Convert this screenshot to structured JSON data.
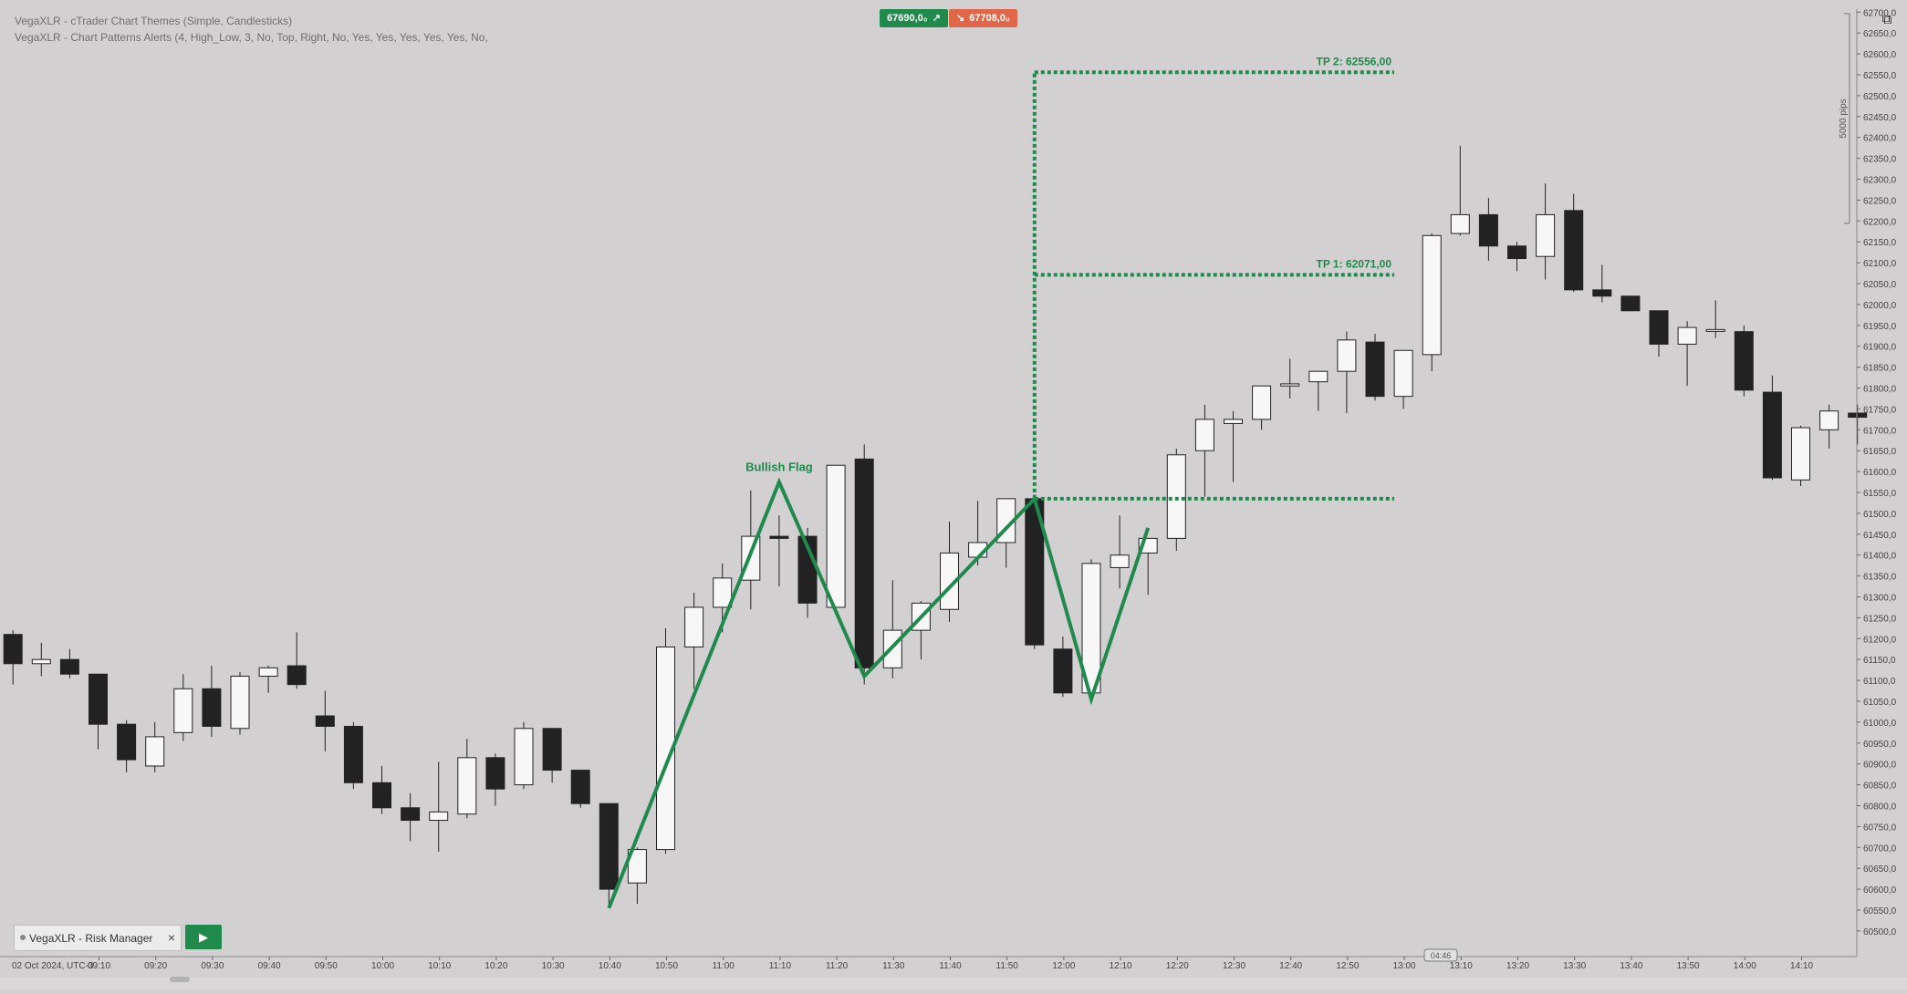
{
  "indicators": {
    "line1": "VegaXLR - cTrader Chart Themes (Simple, Candlesticks)",
    "line2": "VegaXLR - Chart Patterns Alerts (4, High_Low, 3, No, Top, Right, No, Yes, Yes, Yes, Yes, Yes, No,"
  },
  "quotes": {
    "buy_price": "67690,0₀",
    "sell_price": "67708,0₀",
    "buy_arrow": "↗",
    "sell_arrow": "↘"
  },
  "toolbar": {
    "popout_icon": "⧉"
  },
  "risk_manager": {
    "label": "VegaXLR - Risk Manager",
    "close": "×",
    "run": "▶"
  },
  "ruler_label": "5000 pips",
  "colors": {
    "background": "#d2d0d0",
    "bull": "#f7f7f7",
    "bear": "#222222",
    "pattern": "#1f8a4c",
    "buy": "#1f8a4c",
    "sell": "#e26748"
  },
  "chart_data": {
    "type": "candlestick",
    "date_label": "02 Oct 2024, UTC-3",
    "x_ticks": [
      "09:10",
      "09:20",
      "09:30",
      "09:40",
      "09:50",
      "10:00",
      "10:10",
      "10:20",
      "10:30",
      "10:40",
      "10:50",
      "11:00",
      "11:10",
      "11:20",
      "11:30",
      "11:40",
      "11:50",
      "12:00",
      "12:10",
      "12:20",
      "12:30",
      "12:40",
      "12:50",
      "13:00",
      "13:10",
      "13:20",
      "13:30",
      "13:40",
      "13:50",
      "14:00",
      "14:10"
    ],
    "y_ticks": [
      "62700,0",
      "62650,0",
      "62600,0",
      "62550,0",
      "62500,0",
      "62450,0",
      "62400,0",
      "62350,0",
      "62300,0",
      "62250,0",
      "62200,0",
      "62150,0",
      "62100,0",
      "62050,0",
      "62000,0",
      "61950,0",
      "61900,0",
      "61850,0",
      "61800,0",
      "61750,0",
      "61700,0",
      "61650,0",
      "61600,0",
      "61550,0",
      "61500,0",
      "61450,0",
      "61400,0",
      "61350,0",
      "61300,0",
      "61250,0",
      "61200,0",
      "61150,0",
      "61100,0",
      "61050,0",
      "61000,0",
      "60950,0",
      "60900,0",
      "60850,0",
      "60800,0",
      "60750,0",
      "60700,0",
      "60650,0",
      "60600,0",
      "60550,0",
      "60500,0"
    ],
    "ylim": [
      60480,
      62705
    ],
    "crosshair_time": "04:46",
    "candles": [
      {
        "o": 61210,
        "h": 61220,
        "l": 61090,
        "c": 61140
      },
      {
        "o": 61140,
        "h": 61190,
        "l": 61110,
        "c": 61150
      },
      {
        "o": 61150,
        "h": 61175,
        "l": 61105,
        "c": 61115
      },
      {
        "o": 61115,
        "h": 61115,
        "l": 60935,
        "c": 60995
      },
      {
        "o": 60995,
        "h": 61005,
        "l": 60880,
        "c": 60910
      },
      {
        "o": 60895,
        "h": 61000,
        "l": 60880,
        "c": 60965
      },
      {
        "o": 60975,
        "h": 61115,
        "l": 60955,
        "c": 61080
      },
      {
        "o": 61080,
        "h": 61135,
        "l": 60965,
        "c": 60990
      },
      {
        "o": 60985,
        "h": 61120,
        "l": 60970,
        "c": 61110
      },
      {
        "o": 61110,
        "h": 61135,
        "l": 61070,
        "c": 61130
      },
      {
        "o": 61135,
        "h": 61215,
        "l": 61080,
        "c": 61090
      },
      {
        "o": 61015,
        "h": 61075,
        "l": 60930,
        "c": 60990
      },
      {
        "o": 60990,
        "h": 61000,
        "l": 60840,
        "c": 60855
      },
      {
        "o": 60855,
        "h": 60895,
        "l": 60780,
        "c": 60795
      },
      {
        "o": 60795,
        "h": 60830,
        "l": 60715,
        "c": 60765
      },
      {
        "o": 60765,
        "h": 60905,
        "l": 60690,
        "c": 60785
      },
      {
        "o": 60780,
        "h": 60960,
        "l": 60770,
        "c": 60915
      },
      {
        "o": 60915,
        "h": 60925,
        "l": 60800,
        "c": 60840
      },
      {
        "o": 60850,
        "h": 61000,
        "l": 60840,
        "c": 60985
      },
      {
        "o": 60985,
        "h": 60985,
        "l": 60855,
        "c": 60885
      },
      {
        "o": 60885,
        "h": 60885,
        "l": 60795,
        "c": 60805
      },
      {
        "o": 60805,
        "h": 60805,
        "l": 60560,
        "c": 60600
      },
      {
        "o": 60615,
        "h": 60700,
        "l": 60565,
        "c": 60695
      },
      {
        "o": 60695,
        "h": 61225,
        "l": 60685,
        "c": 61180
      },
      {
        "o": 61180,
        "h": 61310,
        "l": 61080,
        "c": 61275
      },
      {
        "o": 61275,
        "h": 61380,
        "l": 61215,
        "c": 61345
      },
      {
        "o": 61340,
        "h": 61555,
        "l": 61270,
        "c": 61445
      },
      {
        "o": 61445,
        "h": 61495,
        "l": 61325,
        "c": 61440
      },
      {
        "o": 61445,
        "h": 61465,
        "l": 61250,
        "c": 61285
      },
      {
        "o": 61275,
        "h": 61615,
        "l": 61260,
        "c": 61615
      },
      {
        "o": 61630,
        "h": 61665,
        "l": 61090,
        "c": 61130
      },
      {
        "o": 61130,
        "h": 61340,
        "l": 61105,
        "c": 61220
      },
      {
        "o": 61220,
        "h": 61290,
        "l": 61150,
        "c": 61285
      },
      {
        "o": 61270,
        "h": 61480,
        "l": 61240,
        "c": 61405
      },
      {
        "o": 61395,
        "h": 61530,
        "l": 61375,
        "c": 61430
      },
      {
        "o": 61430,
        "h": 61535,
        "l": 61370,
        "c": 61535
      },
      {
        "o": 61535,
        "h": 61545,
        "l": 61175,
        "c": 61185
      },
      {
        "o": 61175,
        "h": 61205,
        "l": 61060,
        "c": 61070
      },
      {
        "o": 61070,
        "h": 61390,
        "l": 61060,
        "c": 61380
      },
      {
        "o": 61370,
        "h": 61495,
        "l": 61320,
        "c": 61400
      },
      {
        "o": 61405,
        "h": 61440,
        "l": 61305,
        "c": 61440
      },
      {
        "o": 61440,
        "h": 61655,
        "l": 61410,
        "c": 61640
      },
      {
        "o": 61650,
        "h": 61760,
        "l": 61540,
        "c": 61725
      },
      {
        "o": 61715,
        "h": 61745,
        "l": 61575,
        "c": 61725
      },
      {
        "o": 61725,
        "h": 61805,
        "l": 61700,
        "c": 61805
      },
      {
        "o": 61805,
        "h": 61870,
        "l": 61775,
        "c": 61810
      },
      {
        "o": 61815,
        "h": 61830,
        "l": 61745,
        "c": 61840
      },
      {
        "o": 61840,
        "h": 61935,
        "l": 61740,
        "c": 61915
      },
      {
        "o": 61910,
        "h": 61930,
        "l": 61770,
        "c": 61780
      },
      {
        "o": 61780,
        "h": 61890,
        "l": 61750,
        "c": 61890
      },
      {
        "o": 61880,
        "h": 62170,
        "l": 61840,
        "c": 62165
      },
      {
        "o": 62170,
        "h": 62380,
        "l": 62165,
        "c": 62215
      },
      {
        "o": 62215,
        "h": 62255,
        "l": 62105,
        "c": 62140
      },
      {
        "o": 62140,
        "h": 62150,
        "l": 62080,
        "c": 62110
      },
      {
        "o": 62115,
        "h": 62290,
        "l": 62060,
        "c": 62215
      },
      {
        "o": 62225,
        "h": 62265,
        "l": 62030,
        "c": 62035
      },
      {
        "o": 62035,
        "h": 62095,
        "l": 62005,
        "c": 62020
      },
      {
        "o": 62020,
        "h": 62020,
        "l": 61985,
        "c": 61985
      },
      {
        "o": 61985,
        "h": 61985,
        "l": 61875,
        "c": 61905
      },
      {
        "o": 61905,
        "h": 61960,
        "l": 61805,
        "c": 61945
      },
      {
        "o": 61940,
        "h": 62010,
        "l": 61920,
        "c": 61940
      },
      {
        "o": 61935,
        "h": 61950,
        "l": 61780,
        "c": 61795
      },
      {
        "o": 61790,
        "h": 61830,
        "l": 61580,
        "c": 61585
      },
      {
        "o": 61580,
        "h": 61710,
        "l": 61565,
        "c": 61705
      },
      {
        "o": 61700,
        "h": 61760,
        "l": 61655,
        "c": 61745
      },
      {
        "o": 61740,
        "h": 61760,
        "l": 61665,
        "c": 61730
      }
    ],
    "pattern": {
      "name": "Bullish Flag",
      "points": [
        {
          "i": 21,
          "price": 60555
        },
        {
          "i": 27,
          "price": 61575
        },
        {
          "i": 30,
          "price": 61110
        },
        {
          "i": 36,
          "price": 61535
        },
        {
          "i": 38,
          "price": 61055
        },
        {
          "i": 40,
          "price": 61465
        }
      ],
      "entry": 61535,
      "tp1": {
        "label": "TP 1:",
        "value": "62071,00",
        "price": 62071
      },
      "tp2": {
        "label": "TP 2:",
        "value": "62556,00",
        "price": 62556
      }
    }
  }
}
